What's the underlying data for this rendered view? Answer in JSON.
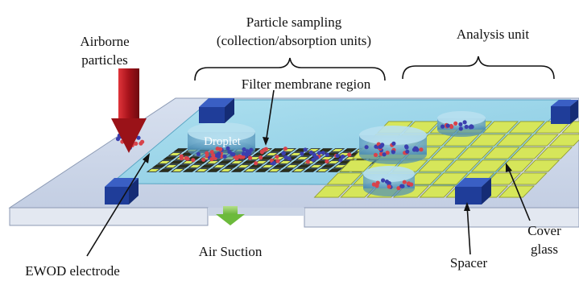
{
  "labels": {
    "airborne_line1": "Airborne",
    "airborne_line2": "particles",
    "sampling_line1": "Particle sampling",
    "sampling_line2": "(collection/absorption units)",
    "analysis": "Analysis unit",
    "filter": "Filter membrane region",
    "droplet": "Droplet",
    "air_suction": "Air Suction",
    "ewod": "EWOD electrode",
    "spacer": "Spacer",
    "cover_line1": "Cover",
    "cover_line2": "glass"
  },
  "colors": {
    "base_top": "#cfd9ea",
    "base_side": "#dde3ee",
    "cover_glass": "#8fd3e8",
    "electrode": "#d6e65a",
    "electrode_edge": "#1a1a1a",
    "spacer": "#1f3d99",
    "droplet": "#6fa8c8",
    "particle_red": "#d8434b",
    "particle_blue": "#3b3fae",
    "arrow_red": "#b3161c",
    "arrow_green": "#7dc242"
  }
}
